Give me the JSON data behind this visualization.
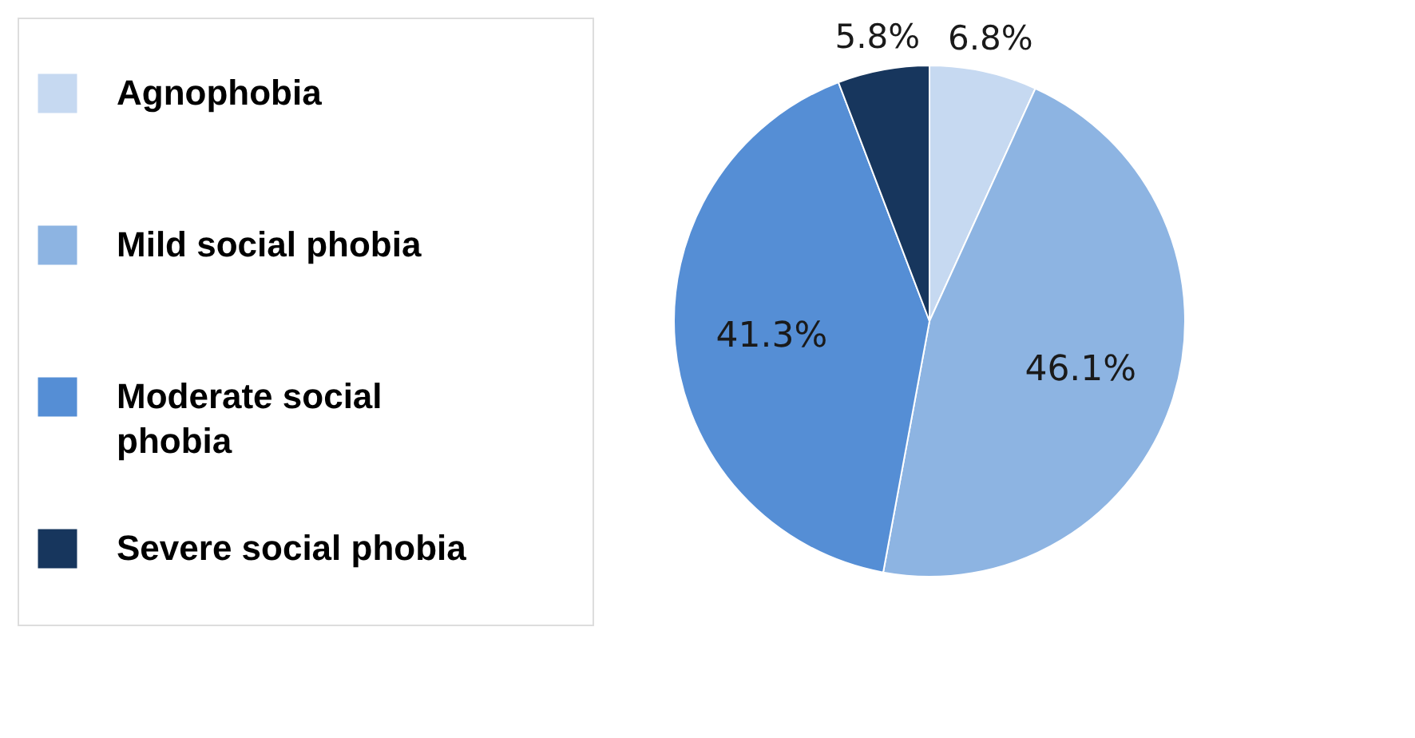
{
  "chart_data": {
    "type": "pie",
    "categories": [
      "Agnophobia",
      "Mild social phobia",
      "Moderate social phobia",
      "Severe social phobia"
    ],
    "values": [
      6.8,
      46.1,
      41.3,
      5.8
    ],
    "value_labels": [
      "6.8%",
      "46.1%",
      "41.3%",
      "5.8%"
    ],
    "colors": [
      "#c6d9f1",
      "#8db4e2",
      "#558ed5",
      "#17365d"
    ],
    "legend": "left"
  }
}
